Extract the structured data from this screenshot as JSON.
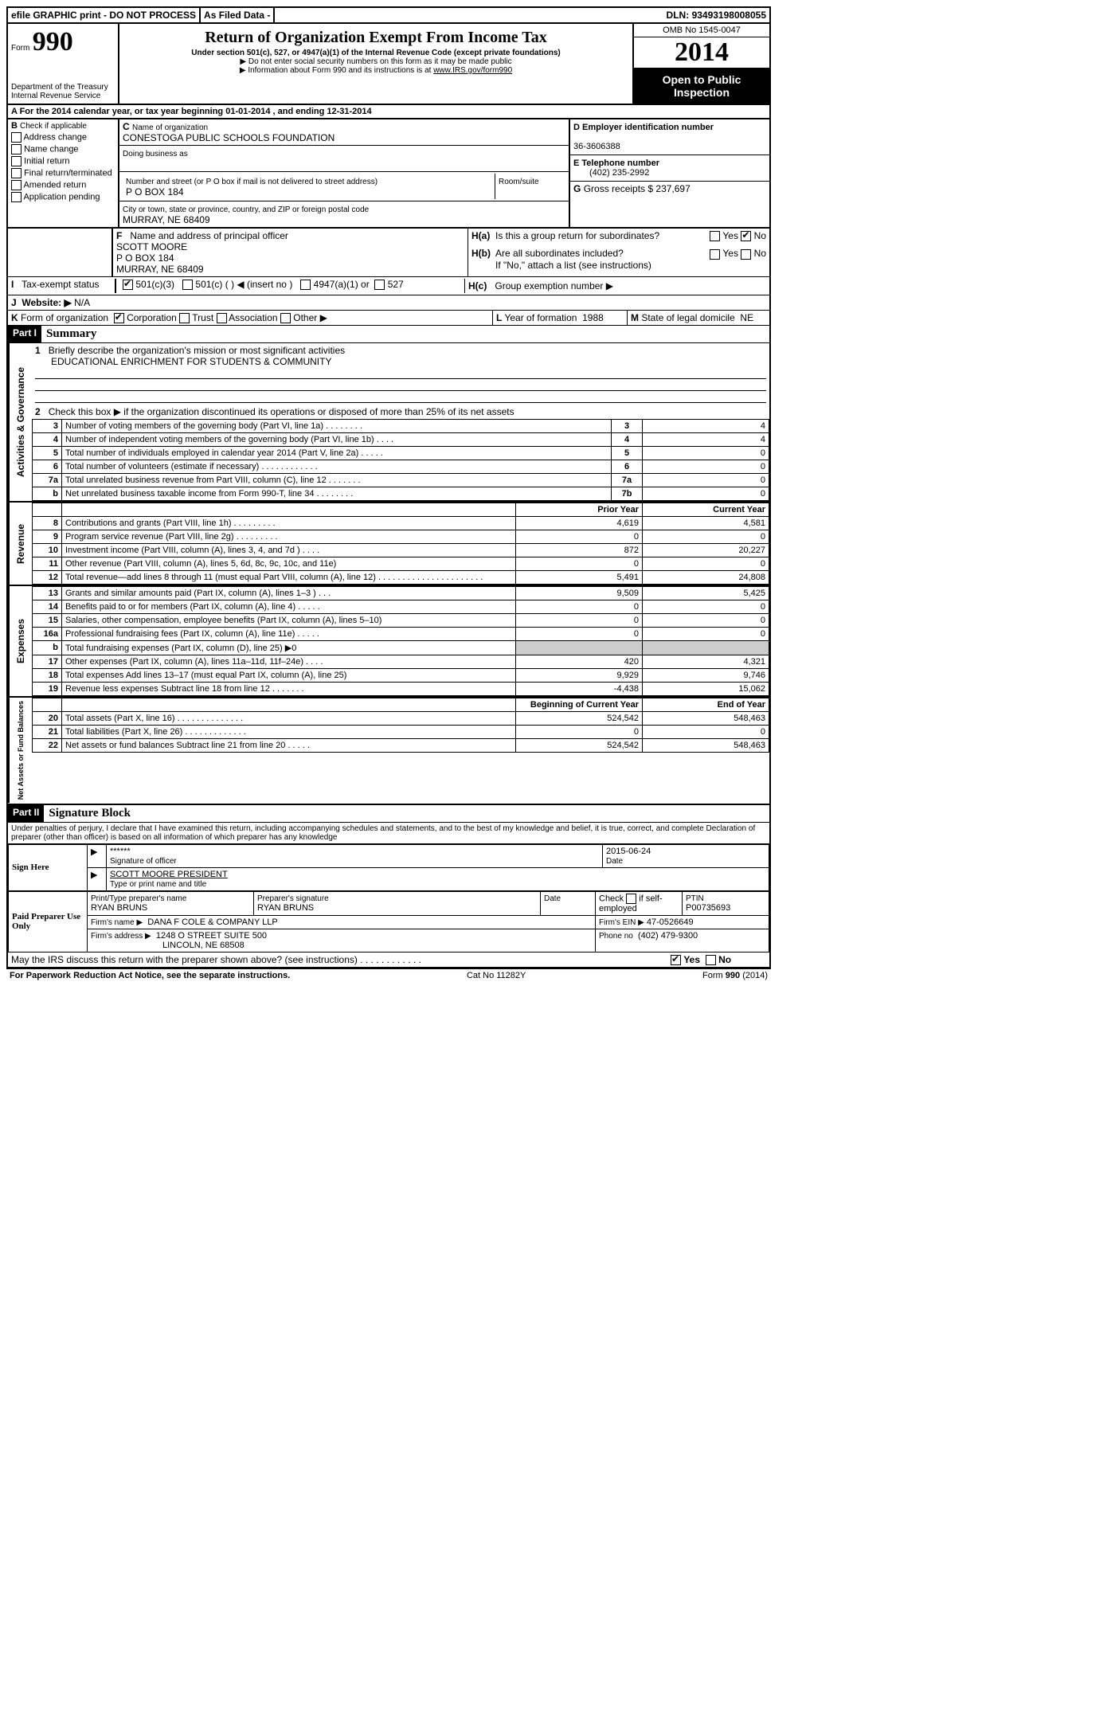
{
  "topbar": {
    "efile": "efile GRAPHIC print - DO NOT PROCESS",
    "asfiled": "As Filed Data -",
    "dln_label": "DLN:",
    "dln": "93493198008055"
  },
  "header": {
    "form_word": "Form",
    "form_no": "990",
    "dept1": "Department of the Treasury",
    "dept2": "Internal Revenue Service",
    "title": "Return of Organization Exempt From Income Tax",
    "subtitle": "Under section 501(c), 527, or 4947(a)(1) of the Internal Revenue Code (except private foundations)",
    "note1": "▶ Do not enter social security numbers on this form as it may be made public",
    "note2_pre": "▶ Information about Form 990 and its instructions is at ",
    "note2_link": "www.IRS.gov/form990",
    "omb": "OMB No 1545-0047",
    "year": "2014",
    "inspect1": "Open to Public",
    "inspect2": "Inspection"
  },
  "sectionA": {
    "text_pre": "A  For the 2014 calendar year, or tax year beginning ",
    "begin": "01-01-2014",
    "mid": "     , and ending ",
    "end": "12-31-2014"
  },
  "checkB": {
    "label": "B",
    "intro": "Check if applicable",
    "items": [
      "Address change",
      "Name change",
      "Initial return",
      "Final return/terminated",
      "Amended return",
      "Application pending"
    ]
  },
  "boxC": {
    "label": "C",
    "name_label": "Name of organization",
    "name": "CONESTOGA PUBLIC SCHOOLS FOUNDATION",
    "dba_label": "Doing business as",
    "street_label": "Number and street (or P O  box if mail is not delivered to street address)",
    "room_label": "Room/suite",
    "street": "P O BOX 184",
    "city_label": "City or town, state or province, country, and ZIP or foreign postal code",
    "city": "MURRAY, NE  68409"
  },
  "boxD": {
    "label": "D Employer identification number",
    "value": "36-3606388"
  },
  "boxE": {
    "label": "E Telephone number",
    "value": "(402) 235-2992"
  },
  "boxG": {
    "label": "G",
    "text": "Gross receipts $",
    "value": "237,697"
  },
  "boxF": {
    "label": "F",
    "text": "Name and address of principal officer",
    "l1": "SCOTT MOORE",
    "l2": "P O BOX 184",
    "l3": "MURRAY, NE 68409"
  },
  "boxH": {
    "a_label": "H(a)",
    "a_text": "Is this a group return for subordinates?",
    "b_label": "H(b)",
    "b_text": "Are all subordinates included?",
    "b_note": "If \"No,\" attach a list  (see instructions)",
    "c_label": "H(c)",
    "c_text": "Group exemption number ▶",
    "yes": "Yes",
    "no": "No"
  },
  "lineI": {
    "label": "I",
    "text": "Tax-exempt status",
    "o1": "501(c)(3)",
    "o2": "501(c) (   ) ◀ (insert no )",
    "o3": "4947(a)(1) or",
    "o4": "527"
  },
  "lineJ": {
    "label": "J",
    "text": "Website: ▶",
    "value": "N/A"
  },
  "lineK": {
    "label": "K",
    "text": "Form of organization",
    "o1": "Corporation",
    "o2": "Trust",
    "o3": "Association",
    "o4": "Other ▶"
  },
  "lineL": {
    "label": "L",
    "text": "Year of formation",
    "value": "1988"
  },
  "lineM": {
    "label": "M",
    "text": "State of legal domicile",
    "value": "NE"
  },
  "partI": {
    "label": "Part I",
    "title": "Summary"
  },
  "summary": {
    "l1_label": "1",
    "l1_text": "Briefly describe the organization's mission or most significant activities",
    "l1_val": "EDUCATIONAL ENRICHMENT FOR STUDENTS & COMMUNITY",
    "l2_label": "2",
    "l2_text": "Check this box ▶    if the organization discontinued its operations or disposed of more than 25% of its net assets"
  },
  "gov_section": "Activities & Governance",
  "rev_section": "Revenue",
  "exp_section": "Expenses",
  "net_section": "Net Assets or Fund Balances",
  "table_headers": {
    "prior": "Prior Year",
    "current": "Current Year",
    "begin": "Beginning of Current Year",
    "end": "End of Year"
  },
  "gov_rows": [
    {
      "n": "3",
      "d": "Number of voting members of the governing body (Part VI, line 1a)   .   .   .   .   .   .   .   .",
      "b": "3",
      "v": "4"
    },
    {
      "n": "4",
      "d": "Number of independent voting members of the governing body (Part VI, line 1b)    .   .   .   .",
      "b": "4",
      "v": "4"
    },
    {
      "n": "5",
      "d": "Total number of individuals employed in calendar year 2014 (Part V, line 2a)    .   .   .   .   .",
      "b": "5",
      "v": "0"
    },
    {
      "n": "6",
      "d": "Total number of volunteers (estimate if necessary)   .   .   .   .   .   .   .   .   .   .   .   .",
      "b": "6",
      "v": "0"
    },
    {
      "n": "7a",
      "d": "Total unrelated business revenue from Part VIII, column (C), line 12   .   .   .   .   .   .   .",
      "b": "7a",
      "v": "0"
    },
    {
      "n": "b",
      "d": "Net unrelated business taxable income from Form 990-T, line 34    .   .   .   .   .   .   .   .",
      "b": "7b",
      "v": "0"
    }
  ],
  "rev_rows": [
    {
      "n": "8",
      "d": "Contributions and grants (Part VIII, line 1h)   .   .   .   .   .   .   .   .   .",
      "p": "4,619",
      "c": "4,581"
    },
    {
      "n": "9",
      "d": "Program service revenue (Part VIII, line 2g)    .   .   .   .   .   .   .   .   .",
      "p": "0",
      "c": "0"
    },
    {
      "n": "10",
      "d": "Investment income (Part VIII, column (A), lines 3, 4, and 7d )    .   .   .   .",
      "p": "872",
      "c": "20,227"
    },
    {
      "n": "11",
      "d": "Other revenue (Part VIII, column (A), lines 5, 6d, 8c, 9c, 10c, and 11e)",
      "p": "0",
      "c": "0"
    },
    {
      "n": "12",
      "d": "Total revenue—add lines 8 through 11 (must equal Part VIII, column (A), line 12) .   .   .   .   .   .   .   .   .   .   .   .   .   .   .   .   .   .   .   .   .   .",
      "p": "5,491",
      "c": "24,808"
    }
  ],
  "exp_rows": [
    {
      "n": "13",
      "d": "Grants and similar amounts paid (Part IX, column (A), lines 1–3 )   .   .   .",
      "p": "9,509",
      "c": "5,425"
    },
    {
      "n": "14",
      "d": "Benefits paid to or for members (Part IX, column (A), line 4)   .   .   .   .   .",
      "p": "0",
      "c": "0"
    },
    {
      "n": "15",
      "d": "Salaries, other compensation, employee benefits (Part IX, column (A), lines 5–10)",
      "p": "0",
      "c": "0"
    },
    {
      "n": "16a",
      "d": "Professional fundraising fees (Part IX, column (A), line 11e)   .   .   .   .   .",
      "p": "0",
      "c": "0"
    },
    {
      "n": "b",
      "d": "Total fundraising expenses (Part IX, column (D), line 25) ▶0",
      "p": "",
      "c": "",
      "grey": true,
      "small": true
    },
    {
      "n": "17",
      "d": "Other expenses (Part IX, column (A), lines 11a–11d, 11f–24e)   .   .   .   .",
      "p": "420",
      "c": "4,321"
    },
    {
      "n": "18",
      "d": "Total expenses  Add lines 13–17 (must equal Part IX, column (A), line 25)",
      "p": "9,929",
      "c": "9,746"
    },
    {
      "n": "19",
      "d": "Revenue less expenses  Subtract line 18 from line 12    .   .   .   .   .   .   .",
      "p": "-4,438",
      "c": "15,062"
    }
  ],
  "net_rows": [
    {
      "n": "20",
      "d": "Total assets (Part X, line 16)    .   .   .   .   .   .   .   .   .   .   .   .   .   .",
      "p": "524,542",
      "c": "548,463"
    },
    {
      "n": "21",
      "d": "Total liabilities (Part X, line 26)    .   .   .   .   .   .   .   .   .   .   .   .   .",
      "p": "0",
      "c": "0"
    },
    {
      "n": "22",
      "d": "Net assets or fund balances  Subtract line 21 from line 20    .   .   .   .   .",
      "p": "524,542",
      "c": "548,463"
    }
  ],
  "partII": {
    "label": "Part II",
    "title": "Signature Block"
  },
  "perjury": "Under penalties of perjury, I declare that I have examined this return, including accompanying schedules and statements, and to the best of my knowledge and belief, it is true, correct, and complete  Declaration of preparer (other than officer) is based on all information of which preparer has any knowledge",
  "sign": {
    "here": "Sign Here",
    "stars": "******",
    "sig_label": "Signature of officer",
    "date": "2015-06-24",
    "date_label": "Date",
    "name": "SCOTT MOORE PRESIDENT",
    "name_label": "Type or print name and title"
  },
  "paid": {
    "label": "Paid Preparer Use Only",
    "prep_name_label": "Print/Type preparer's name",
    "prep_name": "RYAN BRUNS",
    "prep_sig_label": "Preparer's signature",
    "prep_sig": "RYAN BRUNS",
    "date_label": "Date",
    "check_label": "Check      if self-employed",
    "ptin_label": "PTIN",
    "ptin": "P00735693",
    "firm_name_label": "Firm's name    ▶",
    "firm_name": "DANA F COLE & COMPANY LLP",
    "firm_ein_label": "Firm's EIN ▶",
    "firm_ein": "47-0526649",
    "firm_addr_label": "Firm's address ▶",
    "firm_addr1": "1248 O STREET SUITE 500",
    "firm_addr2": "LINCOLN, NE  68508",
    "phone_label": "Phone no",
    "phone": "(402) 479-9300"
  },
  "discuss": {
    "text": "May the IRS discuss this return with the preparer shown above? (see instructions)    .   .   .   .   .   .   .   .   .   .   .   .",
    "yes": "Yes",
    "no": "No"
  },
  "footer": {
    "left": "For Paperwork Reduction Act Notice, see the separate instructions.",
    "mid": "Cat No 11282Y",
    "right": "Form 990 (2014)"
  }
}
